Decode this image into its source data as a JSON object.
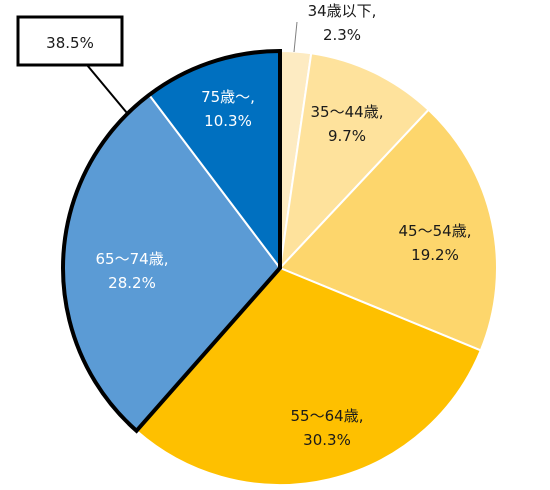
{
  "chart_data": {
    "type": "pie",
    "title": "",
    "slices": [
      {
        "line1": "34歳以下,",
        "line2": "2.3%",
        "value": 2.3,
        "color": "#FDEBC2",
        "text_color": "#1a1a1a"
      },
      {
        "line1": "35～44歳,",
        "line2": "9.7%",
        "value": 9.7,
        "color": "#FEE29C",
        "text_color": "#1a1a1a"
      },
      {
        "line1": "45～54歳,",
        "line2": "19.2%",
        "value": 19.2,
        "color": "#FDD66C",
        "text_color": "#1a1a1a"
      },
      {
        "line1": "55～64歳,",
        "line2": "30.3%",
        "value": 30.3,
        "color": "#FEC000",
        "text_color": "#1a1a1a"
      },
      {
        "line1": "65～74歳,",
        "line2": "28.2%",
        "value": 28.2,
        "color": "#5B9BD5",
        "text_color": "#ffffff"
      },
      {
        "line1": "75歳～,",
        "line2": "10.3%",
        "value": 10.3,
        "color": "#0070C0",
        "text_color": "#ffffff"
      }
    ],
    "callout": {
      "text": "38.5%",
      "covers": [
        "65～74歳",
        "75歳～"
      ]
    }
  }
}
